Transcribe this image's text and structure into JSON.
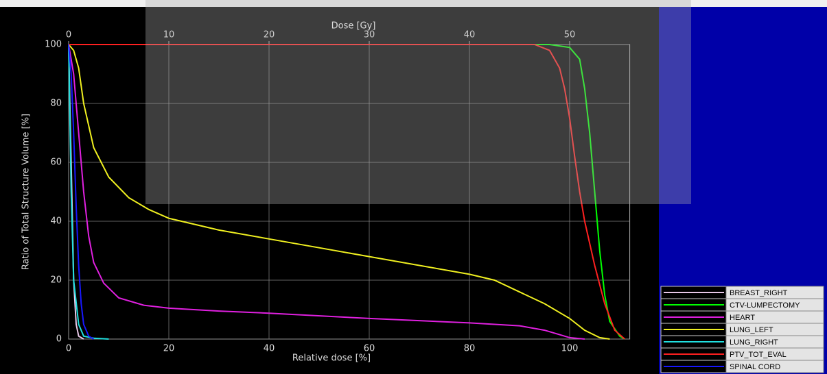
{
  "chart_data": {
    "type": "line",
    "xlabel": "Relative dose [%]",
    "x2label": "Dose [Gy]",
    "ylabel": "Ratio of Total Structure Volume [%]",
    "xlim": [
      0,
      112
    ],
    "xticks": [
      0,
      20,
      40,
      60,
      80,
      100
    ],
    "x2lim": [
      0,
      56
    ],
    "x2ticks": [
      0,
      10,
      20,
      30,
      40,
      50
    ],
    "ylim": [
      0,
      100
    ],
    "yticks": [
      0,
      20,
      40,
      60,
      80,
      100
    ],
    "grid": true,
    "legend": "lower right",
    "series": [
      {
        "name": "BREAST_RIGHT",
        "color": "#e8c8e8",
        "x": [
          0,
          0.5,
          1,
          1.5,
          2,
          3
        ],
        "values": [
          100,
          60,
          20,
          5,
          1,
          0
        ]
      },
      {
        "name": "CTV-LUMPECTOMY",
        "color": "#00ff00",
        "x": [
          0,
          96,
          100,
          102,
          103,
          104,
          105,
          106,
          107,
          108,
          110,
          111
        ],
        "values": [
          100,
          100,
          99,
          95,
          85,
          70,
          50,
          30,
          15,
          6,
          1,
          0
        ]
      },
      {
        "name": "HEART",
        "color": "#e020e0",
        "x": [
          0,
          1,
          2,
          3,
          4,
          5,
          7,
          10,
          15,
          20,
          30,
          40,
          60,
          80,
          90,
          95,
          98,
          100,
          103
        ],
        "values": [
          100,
          90,
          70,
          50,
          35,
          26,
          19,
          14,
          11.5,
          10.5,
          9.5,
          8.8,
          7,
          5.5,
          4.5,
          3,
          1.5,
          0.5,
          0
        ]
      },
      {
        "name": "LUNG_LEFT",
        "color": "#f0f020",
        "x": [
          0,
          1,
          2,
          3,
          5,
          8,
          12,
          16,
          20,
          30,
          40,
          50,
          60,
          70,
          80,
          85,
          90,
          95,
          100,
          103,
          106,
          108
        ],
        "values": [
          100,
          98,
          92,
          80,
          65,
          55,
          48,
          44,
          41,
          37,
          34,
          31,
          28,
          25,
          22,
          20,
          16,
          12,
          7,
          3,
          0.5,
          0
        ]
      },
      {
        "name": "LUNG_RIGHT",
        "color": "#20e0e0",
        "x": [
          0,
          0.5,
          1,
          2,
          3,
          5,
          8
        ],
        "values": [
          100,
          50,
          20,
          5,
          1,
          0.3,
          0
        ]
      },
      {
        "name": "PTV_TOT_EVAL",
        "color": "#ff2020",
        "x": [
          0,
          93,
          96,
          98,
          99,
          100,
          101,
          102,
          103,
          105,
          107,
          109,
          111
        ],
        "values": [
          100,
          100,
          98,
          92,
          85,
          75,
          62,
          50,
          40,
          25,
          12,
          3,
          0
        ]
      },
      {
        "name": "SPINAL CORD",
        "color": "#1818ff",
        "x": [
          0,
          0.5,
          1,
          1.5,
          2,
          2.5,
          3,
          4,
          5
        ],
        "values": [
          100,
          90,
          70,
          45,
          25,
          12,
          5,
          1,
          0
        ]
      }
    ]
  }
}
